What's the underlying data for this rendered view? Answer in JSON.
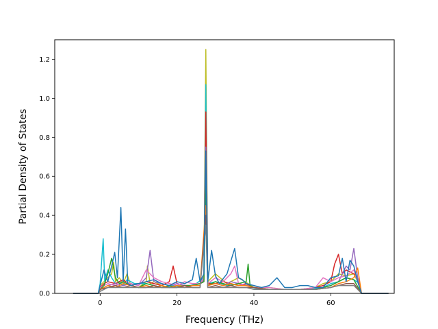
{
  "chart_data": {
    "type": "line",
    "title": "",
    "xlabel": "Frequency (THz)",
    "ylabel": "Partial Density of States",
    "xlim": [
      -11.8,
      76.5
    ],
    "ylim": [
      0,
      1.3
    ],
    "xticks": [
      0,
      20,
      40,
      60
    ],
    "xtick_labels": [
      "0",
      "20",
      "40",
      "60"
    ],
    "yticks": [
      0.0,
      0.2,
      0.4,
      0.6,
      0.8,
      1.0,
      1.2
    ],
    "ytick_labels": [
      "0.0",
      "0.2",
      "0.4",
      "0.6",
      "0.8",
      "1.0",
      "1.2"
    ],
    "grid": false,
    "legend": "none",
    "colors": [
      "#bcbd22",
      "#17becf",
      "#d62728",
      "#9467bd",
      "#e377c2",
      "#2ca02c",
      "#ff7f0e",
      "#8c564b",
      "#7f7f7f",
      "#1f77b4"
    ],
    "series": [
      {
        "x": [
          -7.0,
          -0.5,
          0,
          1,
          2,
          3,
          3.5,
          4,
          5,
          6,
          7,
          8,
          10,
          12,
          12.3,
          13,
          14,
          16,
          18,
          20,
          24,
          26,
          27,
          27.5,
          28,
          30,
          33,
          36,
          38.5,
          40,
          44,
          48,
          52,
          56,
          58,
          60,
          62,
          64,
          66,
          67,
          68,
          75
        ],
        "y": [
          0,
          0,
          0.04,
          0.06,
          0.08,
          0.1,
          0.16,
          0.06,
          0.08,
          0.05,
          0.1,
          0.04,
          0.03,
          0.06,
          0.14,
          0.05,
          0.06,
          0.04,
          0.03,
          0.04,
          0.04,
          0.05,
          0.1,
          1.25,
          0.06,
          0.1,
          0.05,
          0.08,
          0.05,
          0.03,
          0.03,
          0.02,
          0.02,
          0.03,
          0.05,
          0.06,
          0.1,
          0.09,
          0.1,
          0.06,
          0,
          0
        ]
      },
      {
        "x": [
          -7.0,
          -0.5,
          0,
          0.8,
          1.2,
          2,
          3,
          4,
          5,
          6,
          7,
          9,
          12,
          14,
          16,
          19,
          22,
          25,
          27,
          27.5,
          28,
          30,
          33,
          36,
          38.5,
          39.5,
          42,
          46,
          50,
          54,
          58,
          60,
          62,
          64,
          66,
          67.5,
          68,
          75
        ],
        "y": [
          0,
          0,
          0.05,
          0.28,
          0.06,
          0.12,
          0.08,
          0.05,
          0.06,
          0.04,
          0.07,
          0.05,
          0.05,
          0.04,
          0.03,
          0.04,
          0.03,
          0.05,
          0.08,
          1.07,
          0.05,
          0.06,
          0.04,
          0.05,
          0.04,
          0.03,
          0.02,
          0.02,
          0.02,
          0.02,
          0.03,
          0.05,
          0.06,
          0.08,
          0.07,
          0.05,
          0,
          0
        ]
      },
      {
        "x": [
          -7.0,
          -0.5,
          0,
          1,
          2,
          4,
          6,
          8,
          10,
          12,
          14,
          16,
          18,
          19,
          20,
          22,
          24,
          26,
          27,
          27.5,
          28,
          30,
          32,
          34,
          36,
          38,
          40,
          44,
          48,
          52,
          56,
          58,
          60,
          61,
          62,
          63,
          64,
          66,
          67,
          68,
          75
        ],
        "y": [
          0,
          0,
          0.03,
          0.05,
          0.06,
          0.05,
          0.07,
          0.04,
          0.05,
          0.06,
          0.05,
          0.04,
          0.06,
          0.14,
          0.05,
          0.04,
          0.04,
          0.05,
          0.06,
          0.93,
          0.05,
          0.05,
          0.06,
          0.05,
          0.04,
          0.05,
          0.03,
          0.02,
          0.02,
          0.02,
          0.03,
          0.04,
          0.06,
          0.15,
          0.2,
          0.1,
          0.12,
          0.1,
          0.08,
          0,
          0
        ]
      },
      {
        "x": [
          -7.0,
          -0.5,
          0,
          2,
          4,
          6,
          8,
          10,
          12,
          13,
          14,
          16,
          18,
          20,
          22,
          24,
          26,
          27,
          27.5,
          28,
          30,
          32,
          34,
          36,
          38,
          40,
          44,
          48,
          52,
          56,
          60,
          62,
          64,
          65,
          66,
          67,
          68,
          75
        ],
        "y": [
          0,
          0,
          0.02,
          0.04,
          0.05,
          0.04,
          0.05,
          0.04,
          0.08,
          0.22,
          0.06,
          0.05,
          0.04,
          0.05,
          0.04,
          0.04,
          0.05,
          0.07,
          0.75,
          0.04,
          0.05,
          0.04,
          0.06,
          0.05,
          0.04,
          0.03,
          0.02,
          0.02,
          0.02,
          0.02,
          0.04,
          0.06,
          0.14,
          0.12,
          0.23,
          0.08,
          0,
          0
        ]
      },
      {
        "x": [
          -7.0,
          -0.5,
          0,
          2,
          4,
          6,
          8,
          10,
          12,
          14,
          16,
          18,
          20,
          22,
          24,
          26,
          27,
          27.5,
          28,
          30,
          32,
          34,
          35,
          36,
          38,
          40,
          44,
          48,
          52,
          56,
          58,
          60,
          62,
          64,
          66,
          68,
          75
        ],
        "y": [
          0,
          0,
          0.03,
          0.05,
          0.04,
          0.06,
          0.05,
          0.04,
          0.12,
          0.08,
          0.06,
          0.05,
          0.04,
          0.06,
          0.05,
          0.05,
          0.08,
          0.65,
          0.05,
          0.08,
          0.06,
          0.1,
          0.14,
          0.05,
          0.04,
          0.03,
          0.03,
          0.02,
          0.02,
          0.03,
          0.08,
          0.06,
          0.08,
          0.09,
          0.12,
          0,
          0
        ]
      },
      {
        "x": [
          -7.0,
          -0.5,
          0,
          1,
          2,
          3,
          4,
          5,
          6,
          8,
          10,
          12,
          14,
          16,
          18,
          20,
          22,
          24,
          26,
          27,
          27.5,
          28,
          30,
          32,
          34,
          36,
          38,
          38.5,
          39,
          40,
          44,
          48,
          52,
          56,
          60,
          62,
          64,
          66,
          68,
          75
        ],
        "y": [
          0,
          0,
          0.02,
          0.04,
          0.1,
          0.18,
          0.08,
          0.05,
          0.06,
          0.04,
          0.03,
          0.05,
          0.04,
          0.03,
          0.04,
          0.03,
          0.04,
          0.04,
          0.05,
          0.06,
          0.55,
          0.04,
          0.06,
          0.05,
          0.04,
          0.05,
          0.06,
          0.15,
          0.04,
          0.03,
          0.02,
          0.02,
          0.02,
          0.02,
          0.04,
          0.06,
          0.08,
          0.07,
          0,
          0
        ]
      },
      {
        "x": [
          -7.0,
          -0.5,
          0,
          2,
          4,
          6,
          8,
          10,
          12,
          14,
          16,
          18,
          20,
          22,
          24,
          26,
          27.5,
          28,
          30,
          32,
          34,
          36,
          38,
          40,
          44,
          48,
          52,
          56,
          60,
          62,
          64,
          66,
          67,
          68,
          75
        ],
        "y": [
          0,
          0,
          0.02,
          0.04,
          0.03,
          0.05,
          0.04,
          0.03,
          0.04,
          0.03,
          0.04,
          0.03,
          0.04,
          0.03,
          0.04,
          0.04,
          0.45,
          0.04,
          0.05,
          0.04,
          0.05,
          0.04,
          0.04,
          0.03,
          0.02,
          0.02,
          0.02,
          0.02,
          0.03,
          0.05,
          0.06,
          0.08,
          0.13,
          0,
          0
        ]
      },
      {
        "x": [
          -7.0,
          -0.5,
          0,
          2,
          4,
          6,
          8,
          10,
          12,
          14,
          16,
          18,
          20,
          22,
          24,
          26,
          27.5,
          28,
          30,
          32,
          34,
          36,
          38,
          40,
          44,
          48,
          52,
          56,
          60,
          62,
          64,
          66,
          68,
          75
        ],
        "y": [
          0,
          0,
          0.02,
          0.03,
          0.04,
          0.03,
          0.04,
          0.03,
          0.03,
          0.04,
          0.03,
          0.03,
          0.03,
          0.04,
          0.03,
          0.03,
          0.4,
          0.03,
          0.04,
          0.03,
          0.04,
          0.03,
          0.03,
          0.03,
          0.02,
          0.02,
          0.02,
          0.02,
          0.03,
          0.04,
          0.05,
          0.05,
          0,
          0
        ]
      },
      {
        "x": [
          -7.0,
          -0.5,
          0,
          2,
          4,
          6,
          8,
          10,
          12,
          14,
          16,
          18,
          20,
          22,
          24,
          26,
          27.5,
          28,
          30,
          32,
          34,
          36,
          38,
          40,
          44,
          48,
          52,
          56,
          60,
          62,
          64,
          66,
          68,
          75
        ],
        "y": [
          0,
          0,
          0.01,
          0.03,
          0.03,
          0.03,
          0.03,
          0.03,
          0.03,
          0.03,
          0.03,
          0.03,
          0.03,
          0.03,
          0.03,
          0.03,
          0.35,
          0.03,
          0.03,
          0.03,
          0.03,
          0.03,
          0.03,
          0.02,
          0.02,
          0.02,
          0.02,
          0.02,
          0.03,
          0.04,
          0.04,
          0.04,
          0,
          0
        ]
      },
      {
        "x": [
          -7.0,
          -0.5,
          0,
          1,
          2,
          3,
          3.8,
          4.5,
          5.4,
          6,
          6.6,
          7.2,
          8,
          10,
          12,
          14,
          16,
          18,
          20,
          22,
          24,
          25,
          26,
          27,
          27.5,
          28,
          29,
          30,
          31,
          33,
          35,
          36,
          37,
          38,
          40,
          42,
          44,
          46,
          48,
          50,
          52,
          54,
          56,
          58,
          60,
          62,
          63,
          64,
          65,
          66,
          67,
          68,
          75
        ],
        "y": [
          0,
          0,
          0.04,
          0.12,
          0.06,
          0.14,
          0.21,
          0.08,
          0.44,
          0.06,
          0.33,
          0.05,
          0.04,
          0.05,
          0.06,
          0.07,
          0.05,
          0.04,
          0.06,
          0.05,
          0.07,
          0.18,
          0.06,
          0.1,
          0.73,
          0.06,
          0.22,
          0.09,
          0.05,
          0.1,
          0.23,
          0.08,
          0.07,
          0.05,
          0.04,
          0.03,
          0.04,
          0.08,
          0.03,
          0.03,
          0.04,
          0.04,
          0.03,
          0.03,
          0.08,
          0.09,
          0.18,
          0.06,
          0.17,
          0.14,
          0.06,
          0,
          0
        ]
      }
    ]
  }
}
